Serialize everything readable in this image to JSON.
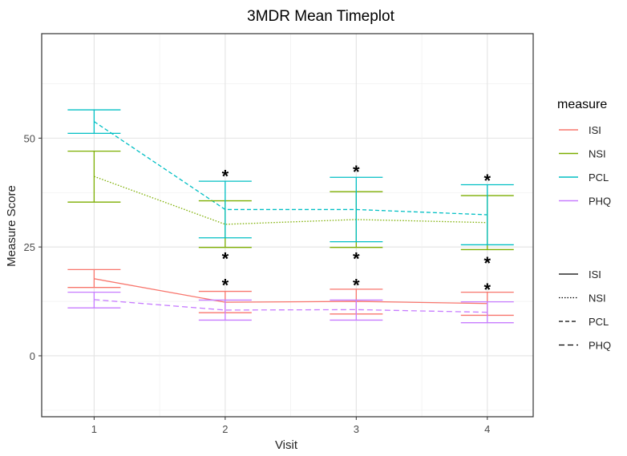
{
  "chart_data": {
    "type": "line",
    "title": "3MDR Mean Timeplot",
    "xlabel": "Visit",
    "ylabel": "Measure Score",
    "x": [
      1,
      2,
      3,
      4
    ],
    "x_tick_labels": [
      "1",
      "2",
      "3",
      "4"
    ],
    "xlim": [
      0.6,
      4.35
    ],
    "ylim": [
      -14,
      74
    ],
    "y_ticks": [
      0,
      25,
      50
    ],
    "y_tick_labels": [
      "0",
      "25",
      "50"
    ],
    "y_minor_ticks": [
      -12.5,
      12.5,
      37.5,
      62.5
    ],
    "grid": true,
    "legend": {
      "title": "measure",
      "color_entries": [
        {
          "label": "ISI",
          "color": "#F8766D"
        },
        {
          "label": "NSI",
          "color": "#7CAE00"
        },
        {
          "label": "PCL",
          "color": "#00BFC4"
        },
        {
          "label": "PHQ",
          "color": "#C77CFF"
        }
      ],
      "linetype_entries": [
        {
          "label": "ISI",
          "linetype": "solid"
        },
        {
          "label": "NSI",
          "linetype": "dotted"
        },
        {
          "label": "PCL",
          "linetype": "dashed"
        },
        {
          "label": "PHQ",
          "linetype": "longdash"
        }
      ],
      "position": "right"
    },
    "series": [
      {
        "name": "ISI",
        "color": "#F8766D",
        "linetype": "solid",
        "values": [
          17.7,
          12.3,
          12.5,
          12.0
        ],
        "lower": [
          15.7,
          9.9,
          9.6,
          9.3
        ],
        "upper": [
          19.8,
          14.8,
          15.3,
          14.6
        ]
      },
      {
        "name": "NSI",
        "color": "#7CAE00",
        "linetype": "dotted",
        "values": [
          41.2,
          30.2,
          31.3,
          30.6
        ],
        "lower": [
          35.3,
          24.9,
          24.9,
          24.4
        ],
        "upper": [
          47.0,
          35.6,
          37.7,
          36.8
        ]
      },
      {
        "name": "PCL",
        "color": "#00BFC4",
        "linetype": "dashed",
        "values": [
          53.8,
          33.6,
          33.6,
          32.4
        ],
        "lower": [
          51.1,
          27.1,
          26.2,
          25.5
        ],
        "upper": [
          56.5,
          40.1,
          41.0,
          39.3
        ]
      },
      {
        "name": "PHQ",
        "color": "#C77CFF",
        "linetype": "longdash",
        "values": [
          12.9,
          10.5,
          10.6,
          10.0
        ],
        "lower": [
          11.0,
          8.2,
          8.2,
          7.6
        ],
        "upper": [
          14.6,
          12.8,
          12.8,
          12.4
        ]
      }
    ],
    "annotations": [
      {
        "text": "*",
        "x": 2,
        "y": 41.5
      },
      {
        "text": "*",
        "x": 2,
        "y": 22.5
      },
      {
        "text": "*",
        "x": 2,
        "y": 16.5
      },
      {
        "text": "*",
        "x": 3,
        "y": 42.5
      },
      {
        "text": "*",
        "x": 3,
        "y": 22.5
      },
      {
        "text": "*",
        "x": 3,
        "y": 16.5
      },
      {
        "text": "*",
        "x": 4,
        "y": 40.5
      },
      {
        "text": "*",
        "x": 4,
        "y": 21.5
      },
      {
        "text": "*",
        "x": 4,
        "y": 15.5
      }
    ]
  }
}
